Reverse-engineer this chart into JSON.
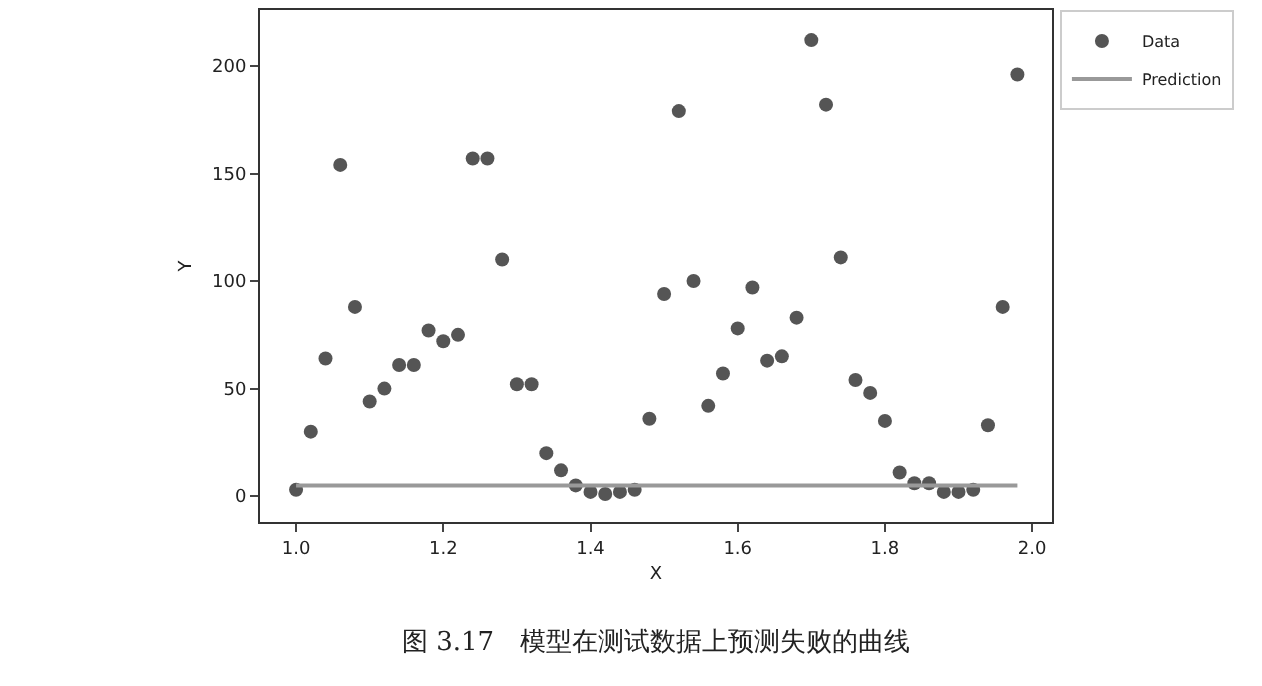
{
  "chart_data": {
    "type": "scatter",
    "xlabel": "X",
    "ylabel": "Y",
    "annotations": [
      "图 3.17　模型在测试数据上预测失败的曲线"
    ],
    "xlim": [
      0.951,
      2.027
    ],
    "xticks": [
      {
        "value": 1,
        "label": "1.0"
      },
      {
        "value": 1.2,
        "label": "1.2"
      },
      {
        "value": 1.4,
        "label": "1.4"
      },
      {
        "value": 1.6,
        "label": "1.6"
      },
      {
        "value": 1.8,
        "label": "1.8"
      },
      {
        "value": 2,
        "label": "2.0"
      }
    ],
    "ylim": [
      -12,
      226
    ],
    "yticks": [
      0,
      50,
      100,
      150,
      200
    ],
    "grid": false,
    "legend": "top right",
    "marker": "circle",
    "series": [
      {
        "name": "Data",
        "color": "#555555",
        "x": [
          1.0,
          1.02,
          1.04,
          1.06,
          1.08,
          1.1,
          1.12,
          1.14,
          1.16,
          1.18,
          1.2,
          1.22,
          1.24,
          1.26,
          1.28,
          1.3,
          1.32,
          1.34,
          1.36,
          1.38,
          1.4,
          1.42,
          1.44,
          1.46,
          1.48,
          1.5,
          1.52,
          1.54,
          1.56,
          1.58,
          1.6,
          1.62,
          1.64,
          1.66,
          1.68,
          1.7,
          1.72,
          1.74,
          1.76,
          1.78,
          1.8,
          1.82,
          1.84,
          1.86,
          1.88,
          1.9,
          1.92,
          1.94,
          1.96,
          1.98
        ],
        "values": [
          3,
          30,
          64,
          154,
          88,
          44,
          50,
          61,
          61,
          77,
          72,
          75,
          157,
          157,
          110,
          52,
          52,
          20,
          12,
          5,
          2,
          1,
          2,
          3,
          36,
          94,
          179,
          100,
          42,
          57,
          78,
          97,
          63,
          65,
          83,
          212,
          182,
          111,
          54,
          48,
          35,
          11,
          6,
          6,
          2,
          2,
          3,
          33,
          88,
          196
        ]
      },
      {
        "name": "Prediction",
        "type": "line",
        "color": "#999999",
        "line_style": "solid",
        "marker": "none",
        "x": [
          1.0,
          1.98
        ],
        "values": [
          5,
          5
        ]
      }
    ]
  }
}
